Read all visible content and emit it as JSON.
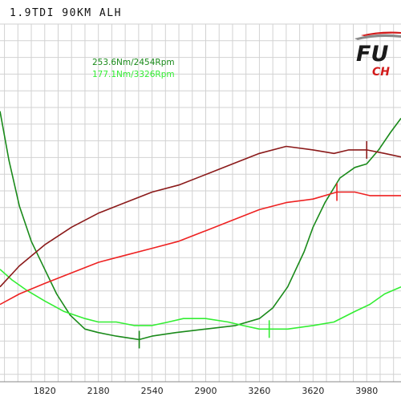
{
  "title": "1.9TDI  90KM ALH",
  "logo": {
    "word": "FU",
    "sub": "CH"
  },
  "colors": {
    "background": "#ffffff",
    "grid": "#d2d2d2",
    "torque_tuned": "#1a8a1a",
    "torque_stock": "#33ee33",
    "power_tuned": "#8b1a1a",
    "power_stock": "#ee2222",
    "logo_red": "#d21a1a"
  },
  "chart_data": {
    "type": "line",
    "title": "",
    "xlabel": "",
    "ylabel": "",
    "x_ticks": [
      1820,
      2180,
      2540,
      2900,
      3260,
      3620,
      3980
    ],
    "xlim": [
      1520,
      4210
    ],
    "grid": true,
    "annotations": [
      {
        "text": "253.6Nm/2454Rpm",
        "series": "torque_tuned",
        "marker_x": 2454
      },
      {
        "text": "177.1Nm/3326Rpm",
        "series": "torque_stock",
        "marker_x": 3326
      }
    ],
    "peak_markers": [
      {
        "series": "power_tuned",
        "x": 3980
      },
      {
        "series": "power_stock",
        "x": 3780
      }
    ],
    "series": [
      {
        "key": "torque_tuned",
        "color": "#1a8a1a",
        "points": [
          [
            1520,
            77
          ],
          [
            1580,
            63
          ],
          [
            1650,
            50
          ],
          [
            1730,
            40
          ],
          [
            1820,
            32
          ],
          [
            1900,
            25
          ],
          [
            1990,
            19
          ],
          [
            2090,
            15
          ],
          [
            2180,
            14
          ],
          [
            2300,
            13
          ],
          [
            2454,
            12
          ],
          [
            2540,
            13
          ],
          [
            2700,
            14
          ],
          [
            2900,
            15
          ],
          [
            3100,
            16
          ],
          [
            3260,
            18
          ],
          [
            3350,
            21
          ],
          [
            3450,
            27
          ],
          [
            3560,
            37
          ],
          [
            3620,
            44
          ],
          [
            3700,
            51
          ],
          [
            3800,
            58
          ],
          [
            3900,
            61
          ],
          [
            3980,
            62
          ],
          [
            4060,
            66
          ],
          [
            4140,
            71
          ],
          [
            4210,
            75
          ]
        ]
      },
      {
        "key": "torque_stock",
        "color": "#33ee33",
        "points": [
          [
            1520,
            32
          ],
          [
            1600,
            29
          ],
          [
            1700,
            26
          ],
          [
            1820,
            23
          ],
          [
            1950,
            20
          ],
          [
            2090,
            18
          ],
          [
            2180,
            17
          ],
          [
            2300,
            17
          ],
          [
            2420,
            16
          ],
          [
            2540,
            16
          ],
          [
            2650,
            17
          ],
          [
            2750,
            18
          ],
          [
            2900,
            18
          ],
          [
            3050,
            17
          ],
          [
            3150,
            16
          ],
          [
            3260,
            15
          ],
          [
            3326,
            15
          ],
          [
            3450,
            15
          ],
          [
            3620,
            16
          ],
          [
            3760,
            17
          ],
          [
            3900,
            20
          ],
          [
            4000,
            22
          ],
          [
            4100,
            25
          ],
          [
            4210,
            27
          ]
        ]
      },
      {
        "key": "power_tuned",
        "color": "#8b1a1a",
        "points": [
          [
            1520,
            27
          ],
          [
            1650,
            33
          ],
          [
            1820,
            39
          ],
          [
            2000,
            44
          ],
          [
            2180,
            48
          ],
          [
            2360,
            51
          ],
          [
            2540,
            54
          ],
          [
            2720,
            56
          ],
          [
            2900,
            59
          ],
          [
            3080,
            62
          ],
          [
            3260,
            65
          ],
          [
            3440,
            67
          ],
          [
            3620,
            66
          ],
          [
            3760,
            65
          ],
          [
            3860,
            66
          ],
          [
            3980,
            66
          ],
          [
            4100,
            65
          ],
          [
            4210,
            64
          ]
        ]
      },
      {
        "key": "power_stock",
        "color": "#ee2222",
        "points": [
          [
            1520,
            22
          ],
          [
            1650,
            25
          ],
          [
            1820,
            28
          ],
          [
            2000,
            31
          ],
          [
            2180,
            34
          ],
          [
            2360,
            36
          ],
          [
            2540,
            38
          ],
          [
            2720,
            40
          ],
          [
            2900,
            43
          ],
          [
            3080,
            46
          ],
          [
            3260,
            49
          ],
          [
            3440,
            51
          ],
          [
            3620,
            52
          ],
          [
            3780,
            54
          ],
          [
            3900,
            54
          ],
          [
            4000,
            53
          ],
          [
            4100,
            53
          ],
          [
            4210,
            53
          ]
        ]
      }
    ]
  }
}
